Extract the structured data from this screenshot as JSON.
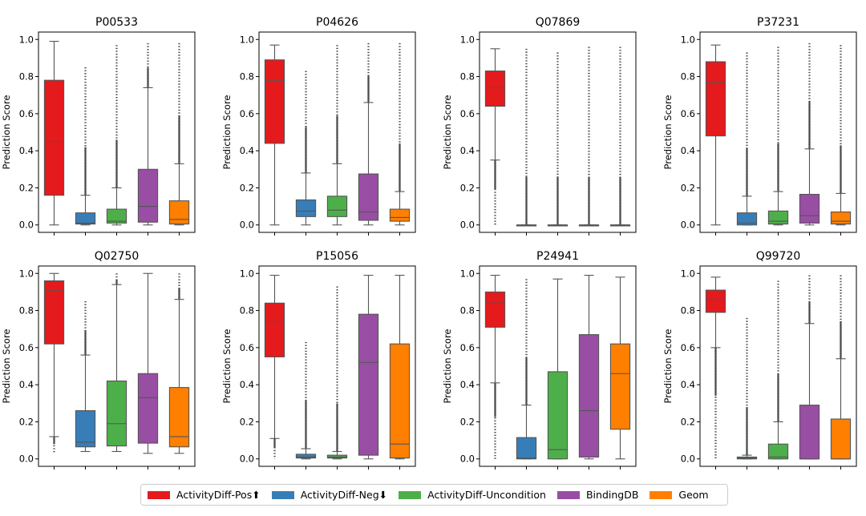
{
  "figure_title": "",
  "colors": {
    "ActivityDiff-Pos": "#E41A1C",
    "ActivityDiff-Neg": "#377EB8",
    "ActivityDiff-Uncondition": "#4DAF4A",
    "BindingDB": "#984EA3",
    "Geom": "#FF7F00"
  },
  "legend": [
    {
      "label": "ActivityDiff-Pos⬆",
      "color": "#E41A1C"
    },
    {
      "label": "ActivityDiff-Neg⬇",
      "color": "#377EB8"
    },
    {
      "label": "ActivityDiff-Uncondition",
      "color": "#4DAF4A"
    },
    {
      "label": "BindingDB",
      "color": "#984EA3"
    },
    {
      "label": "Geom",
      "color": "#FF7F00"
    }
  ],
  "chart_data": [
    {
      "type": "box",
      "title": "P00533",
      "ylabel": "Prediction Score",
      "ylim": [
        -0.04,
        1.04
      ],
      "yticks": [
        "0.0",
        "0.2",
        "0.4",
        "0.6",
        "0.8",
        "1.0"
      ],
      "series": [
        {
          "name": "ActivityDiff-Pos",
          "whislo": 0.0,
          "q1": 0.16,
          "med": 0.45,
          "q3": 0.78,
          "whishi": 0.99,
          "fliers_lo": null,
          "fliers_hi": null
        },
        {
          "name": "ActivityDiff-Neg",
          "whislo": 0.0,
          "q1": 0.005,
          "med": 0.01,
          "q3": 0.065,
          "whishi": 0.16,
          "fliers_lo": null,
          "fliers_hi": 0.85
        },
        {
          "name": "ActivityDiff-Uncondition",
          "whislo": 0.0,
          "q1": 0.01,
          "med": 0.02,
          "q3": 0.085,
          "whishi": 0.2,
          "fliers_lo": null,
          "fliers_hi": 0.97
        },
        {
          "name": "BindingDB",
          "whislo": 0.0,
          "q1": 0.015,
          "med": 0.1,
          "q3": 0.3,
          "whishi": 0.74,
          "fliers_lo": null,
          "fliers_hi": 0.98
        },
        {
          "name": "Geom",
          "whislo": 0.0,
          "q1": 0.005,
          "med": 0.03,
          "q3": 0.13,
          "whishi": 0.33,
          "fliers_lo": null,
          "fliers_hi": 0.98
        }
      ]
    },
    {
      "type": "box",
      "title": "P04626",
      "ylabel": "Prediction Score",
      "ylim": [
        -0.04,
        1.04
      ],
      "yticks": [
        "0.0",
        "0.2",
        "0.4",
        "0.6",
        "0.8",
        "1.0"
      ],
      "series": [
        {
          "name": "ActivityDiff-Pos",
          "whislo": 0.0,
          "q1": 0.44,
          "med": 0.78,
          "q3": 0.89,
          "whishi": 0.97,
          "fliers_lo": null,
          "fliers_hi": null
        },
        {
          "name": "ActivityDiff-Neg",
          "whislo": 0.0,
          "q1": 0.045,
          "med": 0.075,
          "q3": 0.135,
          "whishi": 0.28,
          "fliers_lo": null,
          "fliers_hi": 0.83
        },
        {
          "name": "ActivityDiff-Uncondition",
          "whislo": 0.0,
          "q1": 0.045,
          "med": 0.08,
          "q3": 0.155,
          "whishi": 0.33,
          "fliers_lo": null,
          "fliers_hi": 0.97
        },
        {
          "name": "BindingDB",
          "whislo": 0.0,
          "q1": 0.025,
          "med": 0.07,
          "q3": 0.275,
          "whishi": 0.66,
          "fliers_lo": null,
          "fliers_hi": 0.98
        },
        {
          "name": "Geom",
          "whislo": 0.0,
          "q1": 0.02,
          "med": 0.04,
          "q3": 0.085,
          "whishi": 0.18,
          "fliers_lo": null,
          "fliers_hi": 0.98
        }
      ]
    },
    {
      "type": "box",
      "title": "Q07869",
      "ylabel": "Prediction Score",
      "ylim": [
        -0.04,
        1.04
      ],
      "yticks": [
        "0.0",
        "0.2",
        "0.4",
        "0.6",
        "0.8",
        "1.0"
      ],
      "series": [
        {
          "name": "ActivityDiff-Pos",
          "whislo": 0.35,
          "q1": 0.64,
          "med": 0.74,
          "q3": 0.83,
          "whishi": 0.95,
          "fliers_lo": 0.0,
          "fliers_hi": null
        },
        {
          "name": "ActivityDiff-Neg",
          "whislo": 0.0,
          "q1": 0.0,
          "med": 0.0,
          "q3": 0.0,
          "whishi": 0.0,
          "fliers_lo": null,
          "fliers_hi": 0.95
        },
        {
          "name": "ActivityDiff-Uncondition",
          "whislo": 0.0,
          "q1": 0.0,
          "med": 0.0,
          "q3": 0.0,
          "whishi": 0.0,
          "fliers_lo": null,
          "fliers_hi": 0.93
        },
        {
          "name": "BindingDB",
          "whislo": 0.0,
          "q1": 0.0,
          "med": 0.0,
          "q3": 0.0,
          "whishi": 0.0,
          "fliers_lo": null,
          "fliers_hi": 0.96
        },
        {
          "name": "Geom",
          "whislo": 0.0,
          "q1": 0.0,
          "med": 0.0,
          "q3": 0.0,
          "whishi": 0.0,
          "fliers_lo": null,
          "fliers_hi": 0.96
        }
      ]
    },
    {
      "type": "box",
      "title": "P37231",
      "ylabel": "Prediction Score",
      "ylim": [
        -0.04,
        1.04
      ],
      "yticks": [
        "0.0",
        "0.2",
        "0.4",
        "0.6",
        "0.8",
        "1.0"
      ],
      "series": [
        {
          "name": "ActivityDiff-Pos",
          "whislo": 0.0,
          "q1": 0.48,
          "med": 0.77,
          "q3": 0.88,
          "whishi": 0.97,
          "fliers_lo": null,
          "fliers_hi": null
        },
        {
          "name": "ActivityDiff-Neg",
          "whislo": 0.0,
          "q1": 0.0,
          "med": 0.01,
          "q3": 0.065,
          "whishi": 0.155,
          "fliers_lo": null,
          "fliers_hi": 0.93
        },
        {
          "name": "ActivityDiff-Uncondition",
          "whislo": 0.0,
          "q1": 0.005,
          "med": 0.02,
          "q3": 0.075,
          "whishi": 0.18,
          "fliers_lo": null,
          "fliers_hi": 0.96
        },
        {
          "name": "BindingDB",
          "whislo": 0.0,
          "q1": 0.01,
          "med": 0.05,
          "q3": 0.165,
          "whishi": 0.41,
          "fliers_lo": null,
          "fliers_hi": 0.98
        },
        {
          "name": "Geom",
          "whislo": 0.0,
          "q1": 0.005,
          "med": 0.02,
          "q3": 0.07,
          "whishi": 0.17,
          "fliers_lo": null,
          "fliers_hi": 0.97
        }
      ]
    },
    {
      "type": "box",
      "title": "Q02750",
      "ylabel": "Prediction Score",
      "ylim": [
        -0.04,
        1.04
      ],
      "yticks": [
        "0.0",
        "0.2",
        "0.4",
        "0.6",
        "0.8",
        "1.0"
      ],
      "series": [
        {
          "name": "ActivityDiff-Pos",
          "whislo": 0.12,
          "q1": 0.62,
          "med": 0.91,
          "q3": 0.96,
          "whishi": 1.0,
          "fliers_lo": 0.03,
          "fliers_hi": null
        },
        {
          "name": "ActivityDiff-Neg",
          "whislo": 0.04,
          "q1": 0.065,
          "med": 0.09,
          "q3": 0.26,
          "whishi": 0.56,
          "fliers_lo": null,
          "fliers_hi": 0.85
        },
        {
          "name": "ActivityDiff-Uncondition",
          "whislo": 0.04,
          "q1": 0.07,
          "med": 0.19,
          "q3": 0.42,
          "whishi": 0.94,
          "fliers_lo": null,
          "fliers_hi": 1.0
        },
        {
          "name": "BindingDB",
          "whislo": 0.03,
          "q1": 0.085,
          "med": 0.33,
          "q3": 0.46,
          "whishi": 1.0,
          "fliers_lo": null,
          "fliers_hi": null
        },
        {
          "name": "Geom",
          "whislo": 0.03,
          "q1": 0.065,
          "med": 0.12,
          "q3": 0.385,
          "whishi": 0.86,
          "fliers_lo": null,
          "fliers_hi": 1.0
        }
      ]
    },
    {
      "type": "box",
      "title": "P15056",
      "ylabel": "Prediction Score",
      "ylim": [
        -0.04,
        1.04
      ],
      "yticks": [
        "0.0",
        "0.2",
        "0.4",
        "0.6",
        "0.8",
        "1.0"
      ],
      "series": [
        {
          "name": "ActivityDiff-Pos",
          "whislo": 0.11,
          "q1": 0.55,
          "med": 0.74,
          "q3": 0.84,
          "whishi": 0.99,
          "fliers_lo": 0.0,
          "fliers_hi": null
        },
        {
          "name": "ActivityDiff-Neg",
          "whislo": 0.0,
          "q1": 0.005,
          "med": 0.01,
          "q3": 0.025,
          "whishi": 0.055,
          "fliers_lo": null,
          "fliers_hi": 0.63
        },
        {
          "name": "ActivityDiff-Uncondition",
          "whislo": 0.0,
          "q1": 0.005,
          "med": 0.01,
          "q3": 0.02,
          "whishi": 0.04,
          "fliers_lo": null,
          "fliers_hi": 0.93
        },
        {
          "name": "BindingDB",
          "whislo": 0.0,
          "q1": 0.02,
          "med": 0.52,
          "q3": 0.78,
          "whishi": 0.99,
          "fliers_lo": null,
          "fliers_hi": null
        },
        {
          "name": "Geom",
          "whislo": 0.0,
          "q1": 0.005,
          "med": 0.08,
          "q3": 0.62,
          "whishi": 0.99,
          "fliers_lo": null,
          "fliers_hi": null
        }
      ]
    },
    {
      "type": "box",
      "title": "P24941",
      "ylabel": "Prediction Score",
      "ylim": [
        -0.04,
        1.04
      ],
      "yticks": [
        "0.0",
        "0.2",
        "0.4",
        "0.6",
        "0.8",
        "1.0"
      ],
      "series": [
        {
          "name": "ActivityDiff-Pos",
          "whislo": 0.41,
          "q1": 0.71,
          "med": 0.84,
          "q3": 0.9,
          "whishi": 0.99,
          "fliers_lo": 0.0,
          "fliers_hi": null
        },
        {
          "name": "ActivityDiff-Neg",
          "whislo": 0.0,
          "q1": 0.0,
          "med": 0.005,
          "q3": 0.115,
          "whishi": 0.29,
          "fliers_lo": null,
          "fliers_hi": 0.97
        },
        {
          "name": "ActivityDiff-Uncondition",
          "whislo": 0.0,
          "q1": 0.0,
          "med": 0.05,
          "q3": 0.47,
          "whishi": 0.97,
          "fliers_lo": null,
          "fliers_hi": null
        },
        {
          "name": "BindingDB",
          "whislo": 0.0,
          "q1": 0.01,
          "med": 0.26,
          "q3": 0.67,
          "whishi": 0.99,
          "fliers_lo": null,
          "fliers_hi": null
        },
        {
          "name": "Geom",
          "whislo": 0.0,
          "q1": 0.16,
          "med": 0.46,
          "q3": 0.62,
          "whishi": 0.98,
          "fliers_lo": null,
          "fliers_hi": null
        }
      ]
    },
    {
      "type": "box",
      "title": "Q99720",
      "ylabel": "Prediction Score",
      "ylim": [
        -0.04,
        1.04
      ],
      "yticks": [
        "0.0",
        "0.2",
        "0.4",
        "0.6",
        "0.8",
        "1.0"
      ],
      "series": [
        {
          "name": "ActivityDiff-Pos",
          "whislo": 0.6,
          "q1": 0.79,
          "med": 0.86,
          "q3": 0.91,
          "whishi": 0.98,
          "fliers_lo": 0.0,
          "fliers_hi": null
        },
        {
          "name": "ActivityDiff-Neg",
          "whislo": 0.0,
          "q1": 0.0,
          "med": 0.005,
          "q3": 0.01,
          "whishi": 0.02,
          "fliers_lo": null,
          "fliers_hi": 0.76
        },
        {
          "name": "ActivityDiff-Uncondition",
          "whislo": 0.0,
          "q1": 0.0,
          "med": 0.01,
          "q3": 0.08,
          "whishi": 0.2,
          "fliers_lo": null,
          "fliers_hi": 0.96
        },
        {
          "name": "BindingDB",
          "whislo": 0.0,
          "q1": 0.0,
          "med": 0.0,
          "q3": 0.29,
          "whishi": 0.73,
          "fliers_lo": null,
          "fliers_hi": 0.99
        },
        {
          "name": "Geom",
          "whislo": 0.0,
          "q1": 0.0,
          "med": 0.0,
          "q3": 0.215,
          "whishi": 0.54,
          "fliers_lo": null,
          "fliers_hi": 0.99
        }
      ]
    }
  ]
}
